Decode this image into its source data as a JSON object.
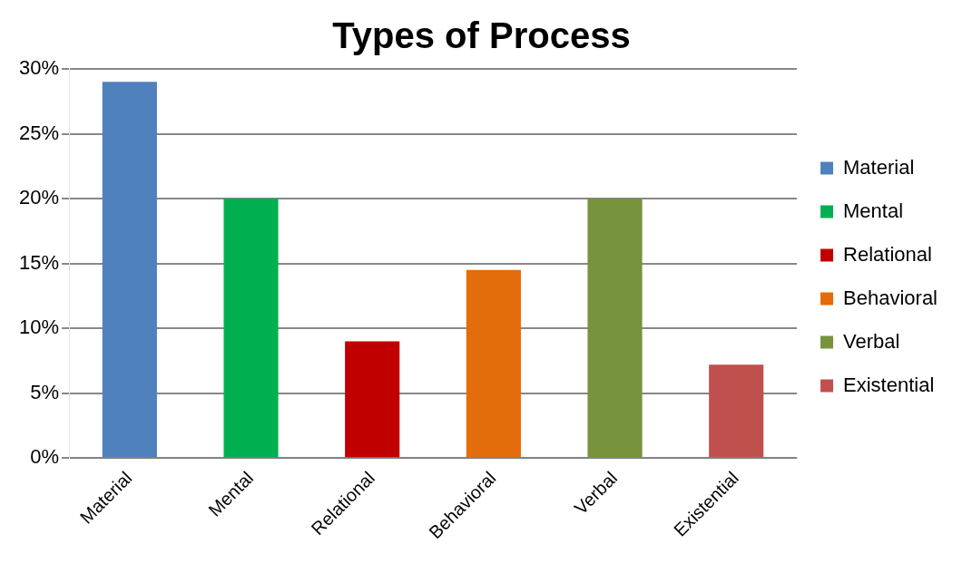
{
  "chart_data": {
    "type": "bar",
    "title": "Types of Process",
    "categories": [
      "Material",
      "Mental",
      "Relational",
      "Behavioral",
      "Verbal",
      "Existential"
    ],
    "series": [
      {
        "name": "Material",
        "color": "#4f81bd",
        "values": [
          29,
          null,
          null,
          null,
          null,
          null
        ]
      },
      {
        "name": "Mental",
        "color": "#00b050",
        "values": [
          null,
          20,
          null,
          null,
          null,
          null
        ]
      },
      {
        "name": "Relational",
        "color": "#c00000",
        "values": [
          null,
          null,
          9,
          null,
          null,
          null
        ]
      },
      {
        "name": "Behavioral",
        "color": "#e46c0a",
        "values": [
          null,
          null,
          null,
          14.5,
          null,
          null
        ]
      },
      {
        "name": "Verbal",
        "color": "#77933c",
        "values": [
          null,
          null,
          null,
          null,
          20,
          null
        ]
      },
      {
        "name": "Existential",
        "color": "#c0504d",
        "values": [
          null,
          null,
          null,
          null,
          null,
          7.2
        ]
      }
    ],
    "ylim": [
      0,
      30
    ],
    "yticks": [
      {
        "value": 0,
        "label": "0%"
      },
      {
        "value": 5,
        "label": "5%"
      },
      {
        "value": 10,
        "label": "10%"
      },
      {
        "value": 15,
        "label": "15%"
      },
      {
        "value": 20,
        "label": "20%"
      },
      {
        "value": 25,
        "label": "25%"
      },
      {
        "value": 30,
        "label": "30%"
      }
    ],
    "grid": "y",
    "legend": "right"
  }
}
